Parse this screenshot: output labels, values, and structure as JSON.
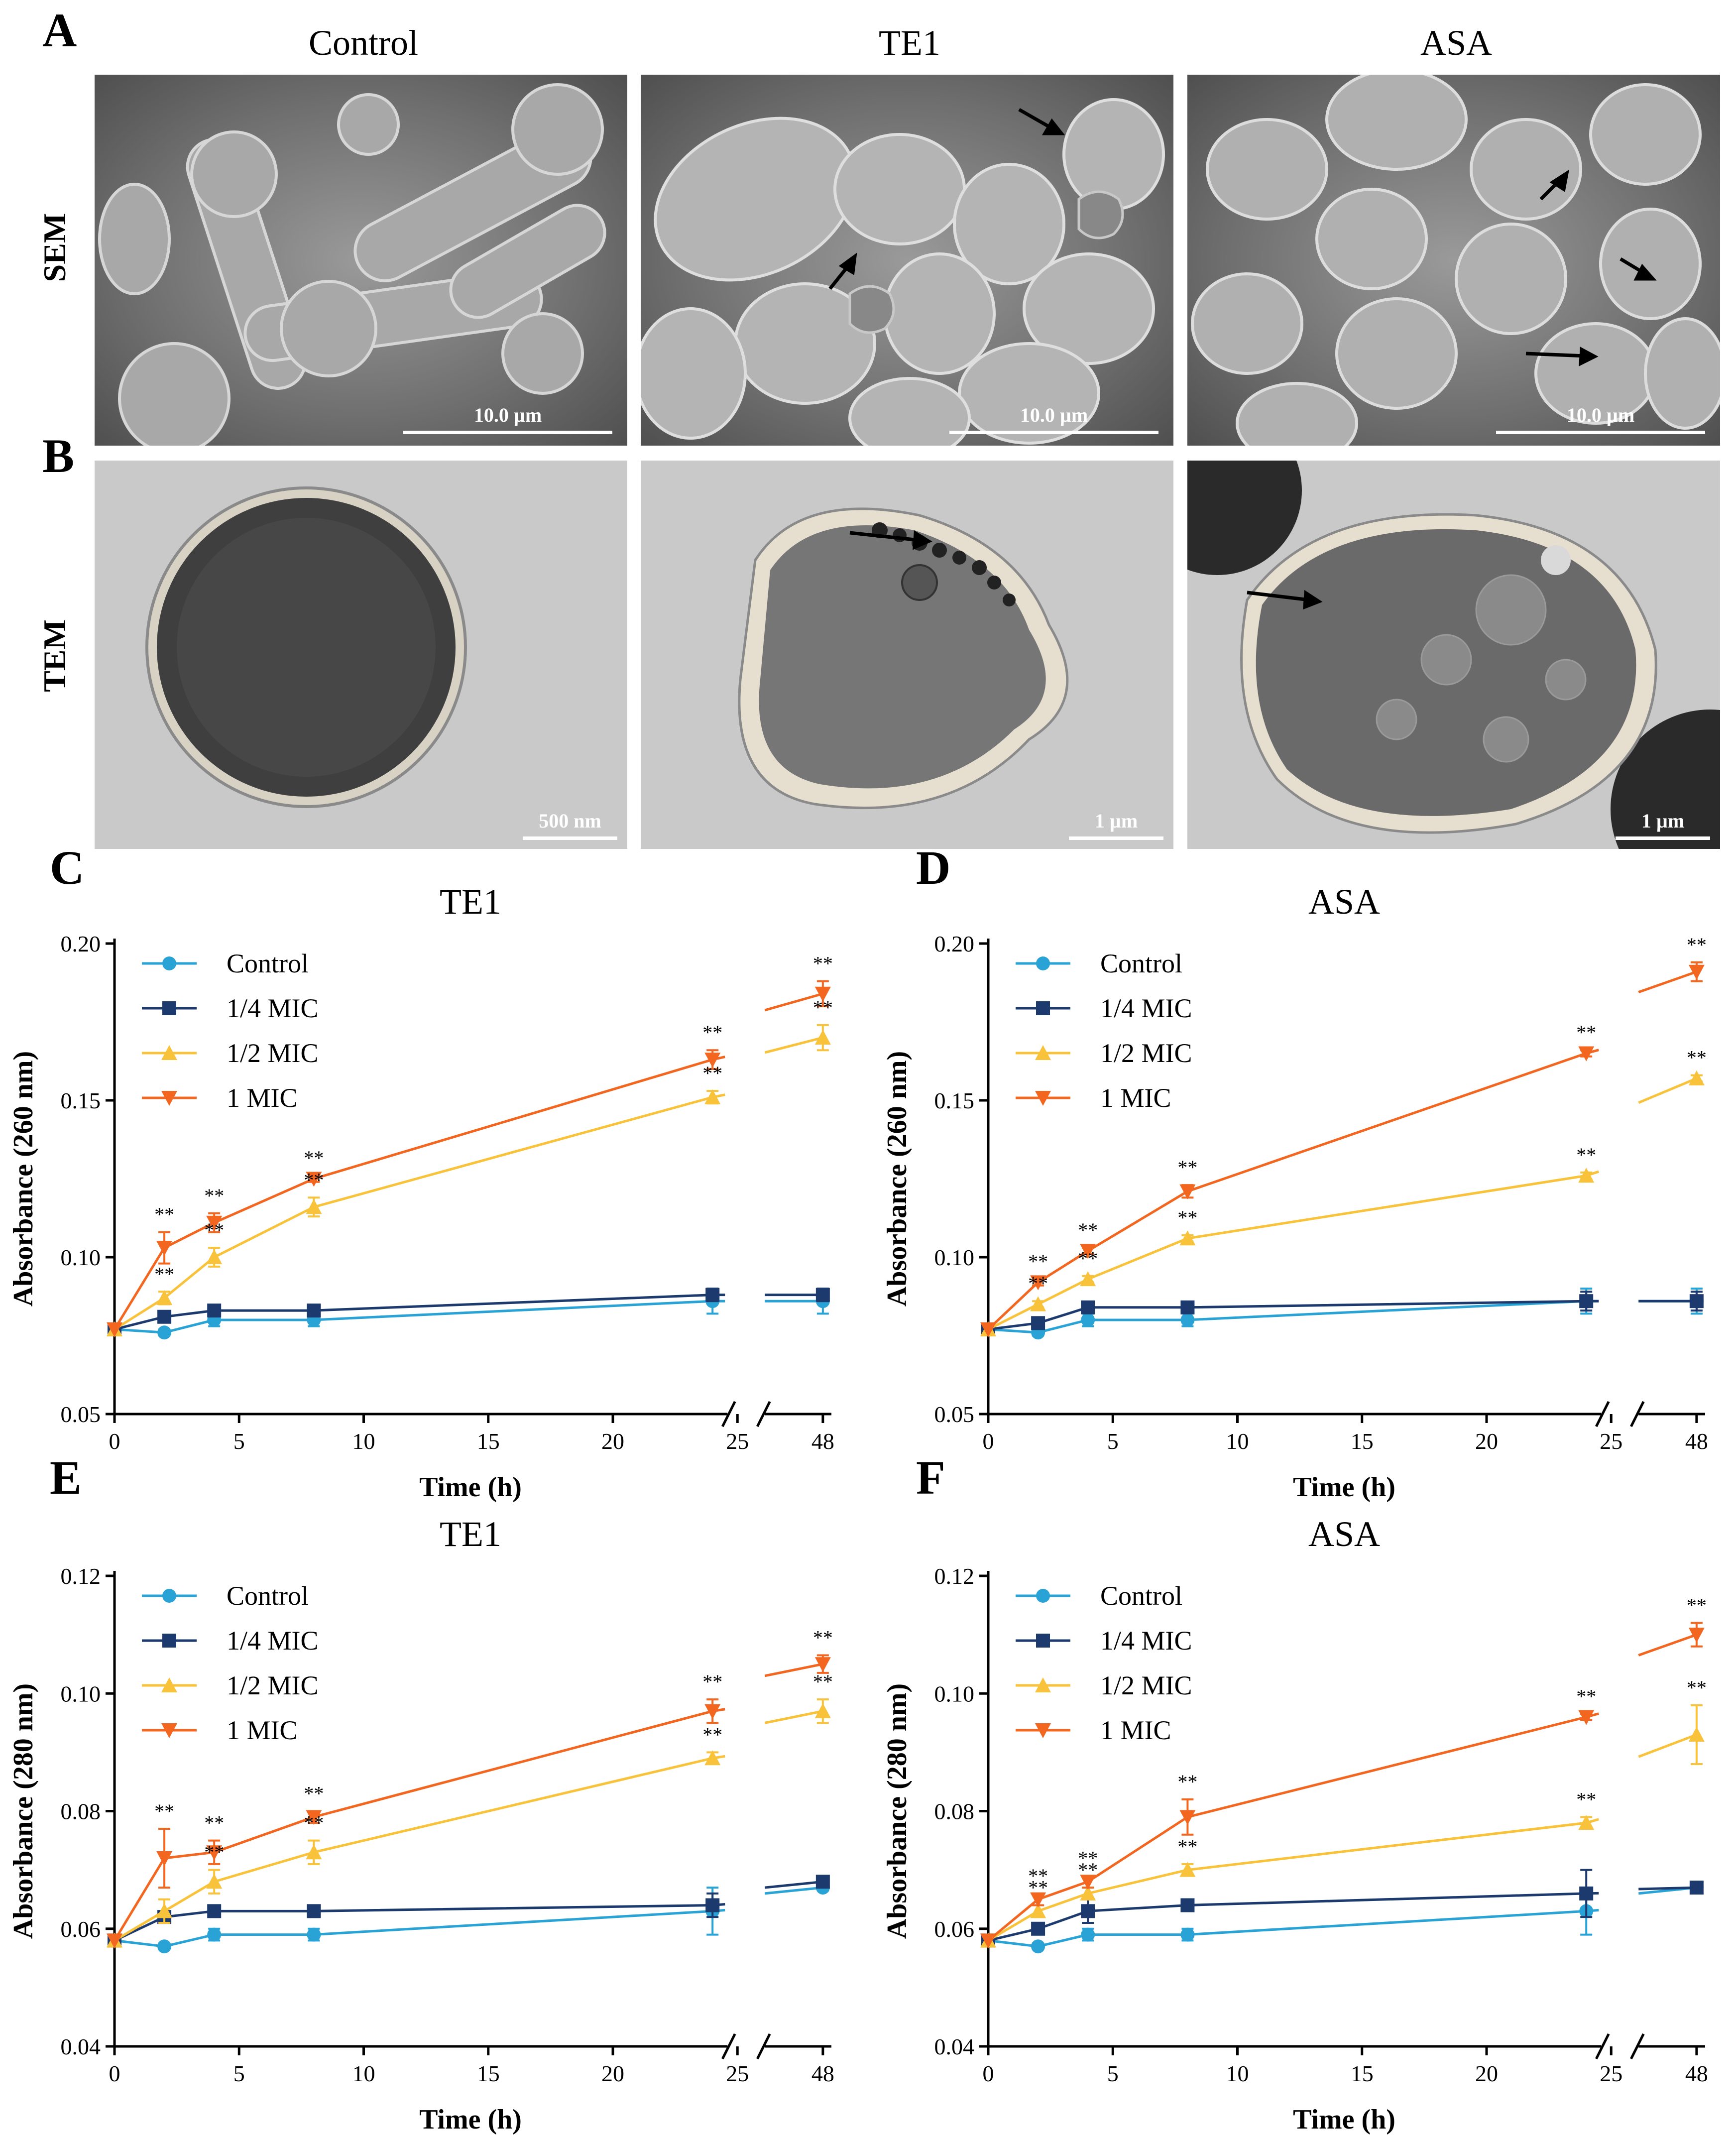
{
  "panel_labels": {
    "a": "A",
    "b": "B",
    "c": "C",
    "d": "D",
    "e": "E",
    "f": "F"
  },
  "micro": {
    "columns": [
      "Control",
      "TE1",
      "ASA"
    ],
    "rows": [
      "SEM",
      "TEM"
    ],
    "sem_scale": [
      "10.0 µm",
      "10.0 µm",
      "10.0 µm"
    ],
    "tem_scale": [
      "500 nm",
      "1 µm",
      "1 µm"
    ]
  },
  "colors": {
    "control": "#29a3d6",
    "quarter": "#1c3a6e",
    "half": "#f8c33a",
    "one": "#f2661f"
  },
  "chart_data": [
    {
      "panel": "C",
      "type": "line",
      "title": "TE1",
      "xlabel": "Time (h)",
      "ylabel": "Absorbance (260 nm)",
      "ylim": [
        0.05,
        0.2
      ],
      "yticks": [
        "0.05",
        "0.10",
        "0.15",
        "0.20"
      ],
      "xticks": [
        "0",
        "5",
        "10",
        "15",
        "20",
        "25",
        "48"
      ],
      "x": [
        0,
        2,
        4,
        8,
        24,
        48
      ],
      "axis_break": [
        25,
        48
      ],
      "legend": [
        "Control",
        "1/4 MIC",
        "1/2 MIC",
        "1 MIC"
      ],
      "legend_position": "top-left",
      "series": [
        {
          "name": "Control",
          "values": [
            0.077,
            0.076,
            0.08,
            0.08,
            0.086,
            0.086
          ],
          "err": [
            0,
            0.001,
            0.002,
            0.002,
            0.004,
            0.004
          ]
        },
        {
          "name": "1/4 MIC",
          "values": [
            0.077,
            0.081,
            0.083,
            0.083,
            0.088,
            0.088
          ],
          "err": [
            0,
            0.001,
            0.001,
            0.001,
            0.002,
            0.002
          ]
        },
        {
          "name": "1/2 MIC",
          "values": [
            0.077,
            0.087,
            0.1,
            0.116,
            0.151,
            0.17
          ],
          "err": [
            0,
            0.002,
            0.003,
            0.003,
            0.002,
            0.004
          ]
        },
        {
          "name": "1 MIC",
          "values": [
            0.077,
            0.103,
            0.111,
            0.125,
            0.163,
            0.184
          ],
          "err": [
            0,
            0.005,
            0.003,
            0.001,
            0.003,
            0.004
          ]
        }
      ],
      "annotations": [
        {
          "series": 3,
          "x": 2,
          "text": "**"
        },
        {
          "series": 2,
          "x": 2,
          "text": "**"
        },
        {
          "series": 3,
          "x": 4,
          "text": "**"
        },
        {
          "series": 2,
          "x": 4,
          "text": "**"
        },
        {
          "series": 3,
          "x": 8,
          "text": "**"
        },
        {
          "series": 2,
          "x": 8,
          "text": "**"
        },
        {
          "series": 3,
          "x": 24,
          "text": "**"
        },
        {
          "series": 2,
          "x": 24,
          "text": "**"
        },
        {
          "series": 3,
          "x": 48,
          "text": "**"
        },
        {
          "series": 2,
          "x": 48,
          "text": "**"
        }
      ]
    },
    {
      "panel": "D",
      "type": "line",
      "title": "ASA",
      "xlabel": "Time (h)",
      "ylabel": "Absorbance (260 nm)",
      "ylim": [
        0.05,
        0.2
      ],
      "yticks": [
        "0.05",
        "0.10",
        "0.15",
        "0.20"
      ],
      "xticks": [
        "0",
        "5",
        "10",
        "15",
        "20",
        "25",
        "48"
      ],
      "x": [
        0,
        2,
        4,
        8,
        24,
        48
      ],
      "axis_break": [
        25,
        48
      ],
      "legend": [
        "Control",
        "1/4 MIC",
        "1/2 MIC",
        "1 MIC"
      ],
      "legend_position": "top-left",
      "series": [
        {
          "name": "Control",
          "values": [
            0.077,
            0.076,
            0.08,
            0.08,
            0.086,
            0.086
          ],
          "err": [
            0,
            0.001,
            0.002,
            0.002,
            0.004,
            0.004
          ]
        },
        {
          "name": "1/4 MIC",
          "values": [
            0.077,
            0.079,
            0.084,
            0.084,
            0.086,
            0.086
          ],
          "err": [
            0,
            0.001,
            0.001,
            0.001,
            0.003,
            0.003
          ]
        },
        {
          "name": "1/2 MIC",
          "values": [
            0.077,
            0.085,
            0.093,
            0.106,
            0.126,
            0.157
          ],
          "err": [
            0,
            0.001,
            0.001,
            0.001,
            0.001,
            0.001
          ]
        },
        {
          "name": "1 MIC",
          "values": [
            0.077,
            0.092,
            0.102,
            0.121,
            0.165,
            0.191
          ],
          "err": [
            0,
            0.001,
            0.001,
            0.002,
            0.001,
            0.003
          ]
        }
      ],
      "annotations": [
        {
          "series": 3,
          "x": 2,
          "text": "**"
        },
        {
          "series": 2,
          "x": 2,
          "text": "**"
        },
        {
          "series": 3,
          "x": 4,
          "text": "**"
        },
        {
          "series": 2,
          "x": 4,
          "text": "**"
        },
        {
          "series": 3,
          "x": 8,
          "text": "**"
        },
        {
          "series": 2,
          "x": 8,
          "text": "**"
        },
        {
          "series": 3,
          "x": 24,
          "text": "**"
        },
        {
          "series": 2,
          "x": 24,
          "text": "**"
        },
        {
          "series": 3,
          "x": 48,
          "text": "**"
        },
        {
          "series": 2,
          "x": 48,
          "text": "**"
        }
      ]
    },
    {
      "panel": "E",
      "type": "line",
      "title": "TE1",
      "xlabel": "Time (h)",
      "ylabel": "Absorbance (280 nm)",
      "ylim": [
        0.04,
        0.12
      ],
      "yticks": [
        "0.04",
        "0.06",
        "0.08",
        "0.10",
        "0.12"
      ],
      "xticks": [
        "0",
        "5",
        "10",
        "15",
        "20",
        "25",
        "48"
      ],
      "x": [
        0,
        2,
        4,
        8,
        24,
        48
      ],
      "axis_break": [
        25,
        48
      ],
      "legend": [
        "Control",
        "1/4 MIC",
        "1/2 MIC",
        "1 MIC"
      ],
      "legend_position": "top-left",
      "series": [
        {
          "name": "Control",
          "values": [
            0.058,
            0.057,
            0.059,
            0.059,
            0.063,
            0.067
          ],
          "err": [
            0,
            0.0005,
            0.001,
            0.001,
            0.004,
            0.0005
          ]
        },
        {
          "name": "1/4 MIC",
          "values": [
            0.058,
            0.062,
            0.063,
            0.063,
            0.064,
            0.068
          ],
          "err": [
            0,
            0.0005,
            0.001,
            0.001,
            0.002,
            0.0005
          ]
        },
        {
          "name": "1/2 MIC",
          "values": [
            0.058,
            0.063,
            0.068,
            0.073,
            0.089,
            0.097
          ],
          "err": [
            0,
            0.002,
            0.002,
            0.002,
            0.001,
            0.002
          ]
        },
        {
          "name": "1 MIC",
          "values": [
            0.058,
            0.072,
            0.073,
            0.079,
            0.097,
            0.105
          ],
          "err": [
            0,
            0.005,
            0.002,
            0.001,
            0.002,
            0.0015
          ]
        }
      ],
      "annotations": [
        {
          "series": 3,
          "x": 2,
          "text": "**"
        },
        {
          "series": 3,
          "x": 4,
          "text": "**"
        },
        {
          "series": 2,
          "x": 4,
          "text": "**"
        },
        {
          "series": 3,
          "x": 8,
          "text": "**"
        },
        {
          "series": 2,
          "x": 8,
          "text": "**"
        },
        {
          "series": 3,
          "x": 24,
          "text": "**"
        },
        {
          "series": 2,
          "x": 24,
          "text": "**"
        },
        {
          "series": 3,
          "x": 48,
          "text": "**"
        },
        {
          "series": 2,
          "x": 48,
          "text": "**"
        }
      ]
    },
    {
      "panel": "F",
      "type": "line",
      "title": "ASA",
      "xlabel": "Time (h)",
      "ylabel": "Absorbance (280 nm)",
      "ylim": [
        0.04,
        0.12
      ],
      "yticks": [
        "0.04",
        "0.06",
        "0.08",
        "0.10",
        "0.12"
      ],
      "xticks": [
        "0",
        "5",
        "10",
        "15",
        "20",
        "25",
        "48"
      ],
      "x": [
        0,
        2,
        4,
        8,
        24,
        48
      ],
      "axis_break": [
        25,
        48
      ],
      "legend": [
        "Control",
        "1/4 MIC",
        "1/2 MIC",
        "1 MIC"
      ],
      "legend_position": "top-left",
      "series": [
        {
          "name": "Control",
          "values": [
            0.058,
            0.057,
            0.059,
            0.059,
            0.063,
            0.067
          ],
          "err": [
            0,
            0.0005,
            0.001,
            0.001,
            0.004,
            0.0005
          ]
        },
        {
          "name": "1/4 MIC",
          "values": [
            0.058,
            0.06,
            0.063,
            0.064,
            0.066,
            0.067
          ],
          "err": [
            0,
            0.0005,
            0.002,
            0.001,
            0.004,
            0.0005
          ]
        },
        {
          "name": "1/2 MIC",
          "values": [
            0.058,
            0.063,
            0.066,
            0.07,
            0.078,
            0.093
          ],
          "err": [
            0,
            0.001,
            0.001,
            0.001,
            0.001,
            0.005
          ]
        },
        {
          "name": "1 MIC",
          "values": [
            0.058,
            0.065,
            0.068,
            0.079,
            0.096,
            0.11
          ],
          "err": [
            0,
            0.001,
            0.001,
            0.003,
            0.0005,
            0.002
          ]
        }
      ],
      "annotations": [
        {
          "series": 3,
          "x": 2,
          "text": "**"
        },
        {
          "series": 2,
          "x": 2,
          "text": "**"
        },
        {
          "series": 3,
          "x": 4,
          "text": "**"
        },
        {
          "series": 2,
          "x": 4,
          "text": "**"
        },
        {
          "series": 3,
          "x": 8,
          "text": "**"
        },
        {
          "series": 2,
          "x": 8,
          "text": "**"
        },
        {
          "series": 3,
          "x": 24,
          "text": "**"
        },
        {
          "series": 2,
          "x": 24,
          "text": "**"
        },
        {
          "series": 3,
          "x": 48,
          "text": "**"
        },
        {
          "series": 2,
          "x": 48,
          "text": "**"
        }
      ]
    }
  ]
}
